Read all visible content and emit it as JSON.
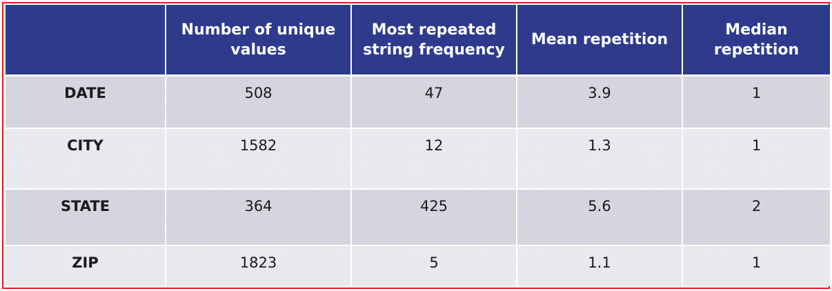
{
  "table": {
    "headers": [
      "",
      "Number of unique values",
      "Most repeated string frequency",
      "Mean repetition",
      "Median repetition"
    ],
    "rows": [
      {
        "label": "DATE",
        "cells": [
          "508",
          "47",
          "3.9",
          "1"
        ]
      },
      {
        "label": "CITY",
        "cells": [
          "1582",
          "12",
          "1.3",
          "1"
        ]
      },
      {
        "label": "STATE",
        "cells": [
          "364",
          "425",
          "5.6",
          "2"
        ]
      },
      {
        "label": "ZIP",
        "cells": [
          "1823",
          "5",
          "1.1",
          "1"
        ]
      }
    ]
  },
  "colors": {
    "header_background": "#2e3a8c",
    "header_text": "#ffffff",
    "row_band_dark": "#d3d3dd",
    "row_band_light": "#e7e7ee",
    "frame_border": "#e0151b"
  }
}
